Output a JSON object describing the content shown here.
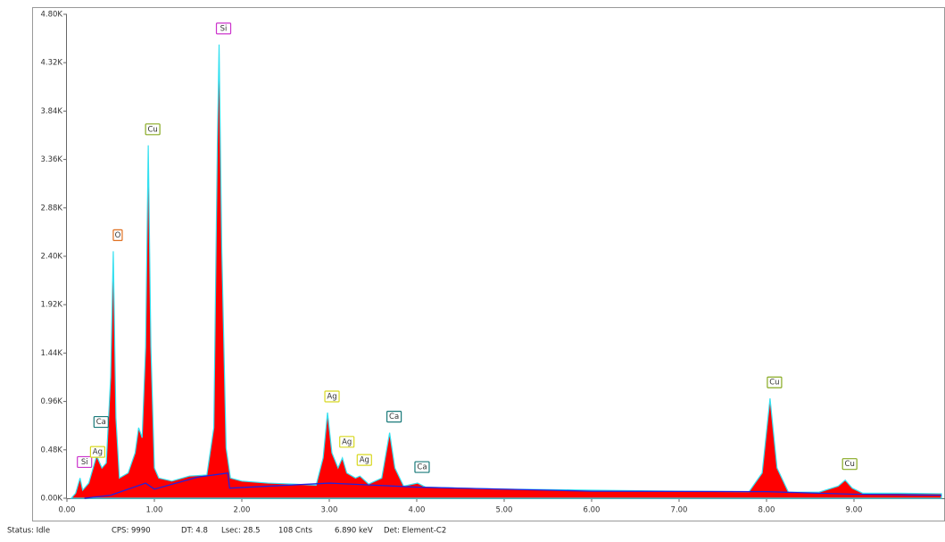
{
  "chart_data": {
    "type": "spectrum",
    "xlim": [
      0,
      10.04
    ],
    "ylim": [
      0,
      4800
    ],
    "xticks": [
      {
        "value": 0,
        "label": "0.00"
      },
      {
        "value": 1,
        "label": "1.00"
      },
      {
        "value": 2,
        "label": "2.00"
      },
      {
        "value": 3,
        "label": "3.00"
      },
      {
        "value": 4,
        "label": "4.00"
      },
      {
        "value": 5,
        "label": "5.00"
      },
      {
        "value": 6,
        "label": "6.00"
      },
      {
        "value": 7,
        "label": "7.00"
      },
      {
        "value": 8,
        "label": "8.00"
      },
      {
        "value": 9,
        "label": "9.00"
      }
    ],
    "yticks": [
      {
        "value": 0,
        "label": "0.00K"
      },
      {
        "value": 480,
        "label": "0.48K"
      },
      {
        "value": 960,
        "label": "0.96K"
      },
      {
        "value": 1440,
        "label": "1.44K"
      },
      {
        "value": 1920,
        "label": "1.92K"
      },
      {
        "value": 2400,
        "label": "2.40K"
      },
      {
        "value": 2880,
        "label": "2.88K"
      },
      {
        "value": 3360,
        "label": "3.36K"
      },
      {
        "value": 3840,
        "label": "3.84K"
      },
      {
        "value": 4320,
        "label": "4.32K"
      },
      {
        "value": 4800,
        "label": "4.80K"
      }
    ],
    "series": [
      {
        "color": "#ff0000",
        "outline": "#33e0f0",
        "x": [
          0.05,
          0.1,
          0.15,
          0.18,
          0.25,
          0.3,
          0.34,
          0.4,
          0.45,
          0.5,
          0.53,
          0.56,
          0.6,
          0.7,
          0.78,
          0.82,
          0.86,
          0.9,
          0.93,
          0.96,
          1.0,
          1.05,
          1.2,
          1.4,
          1.6,
          1.68,
          1.72,
          1.74,
          1.77,
          1.82,
          1.87,
          2.0,
          2.3,
          2.6,
          2.85,
          2.93,
          2.98,
          3.03,
          3.1,
          3.15,
          3.2,
          3.3,
          3.35,
          3.45,
          3.6,
          3.69,
          3.75,
          3.85,
          4.01,
          4.1,
          4.5,
          5.0,
          6.0,
          7.0,
          7.8,
          7.95,
          8.04,
          8.12,
          8.25,
          8.6,
          8.82,
          8.9,
          8.98,
          9.1,
          9.5,
          10.0
        ],
        "values": [
          0,
          50,
          200,
          80,
          150,
          300,
          420,
          300,
          350,
          1200,
          2450,
          800,
          200,
          250,
          450,
          700,
          600,
          1500,
          3500,
          1500,
          300,
          200,
          170,
          220,
          230,
          700,
          3500,
          4500,
          2500,
          500,
          200,
          170,
          150,
          140,
          130,
          400,
          850,
          450,
          300,
          400,
          250,
          200,
          220,
          140,
          200,
          650,
          300,
          120,
          150,
          110,
          100,
          90,
          80,
          70,
          65,
          250,
          990,
          300,
          60,
          60,
          120,
          180,
          100,
          50,
          50,
          45
        ]
      },
      {
        "color": "#2222dd",
        "x": [
          0.2,
          0.5,
          0.9,
          1.0,
          1.5,
          1.84,
          1.86,
          3.0,
          4.0,
          6.0,
          8.0,
          9.0,
          10.0
        ],
        "values": [
          0,
          30,
          150,
          90,
          210,
          250,
          100,
          150,
          110,
          70,
          65,
          40,
          30
        ]
      }
    ],
    "peak_labels": [
      {
        "x": 0.15,
        "label": "Si",
        "color": "#cc33cc"
      },
      {
        "x": 0.34,
        "label": "Ca",
        "color": "#1a7a7a"
      },
      {
        "x": 0.3,
        "label": "Ag",
        "color": "#d8d820"
      },
      {
        "x": 0.53,
        "label": "O",
        "color": "#e07020"
      },
      {
        "x": 0.93,
        "label": "Cu",
        "color": "#88aa22"
      },
      {
        "x": 1.74,
        "label": "Si",
        "color": "#cc33cc"
      },
      {
        "x": 2.98,
        "label": "Ag",
        "color": "#d8d820"
      },
      {
        "x": 3.15,
        "label": "Ag",
        "color": "#d8d820"
      },
      {
        "x": 3.35,
        "label": "Ag",
        "color": "#d8d820"
      },
      {
        "x": 3.69,
        "label": "Ca",
        "color": "#1a7a7a"
      },
      {
        "x": 4.01,
        "label": "Ca",
        "color": "#1a7a7a"
      },
      {
        "x": 8.04,
        "label": "Cu",
        "color": "#88aa22"
      },
      {
        "x": 8.9,
        "label": "Cu",
        "color": "#88aa22"
      }
    ]
  },
  "status_bar": [
    "Status: Idle",
    "CPS: 9990",
    "DT: 4.8",
    "Lsec: 28.5",
    "108 Cnts",
    "6.890 keV",
    "Det: Element-C2"
  ]
}
